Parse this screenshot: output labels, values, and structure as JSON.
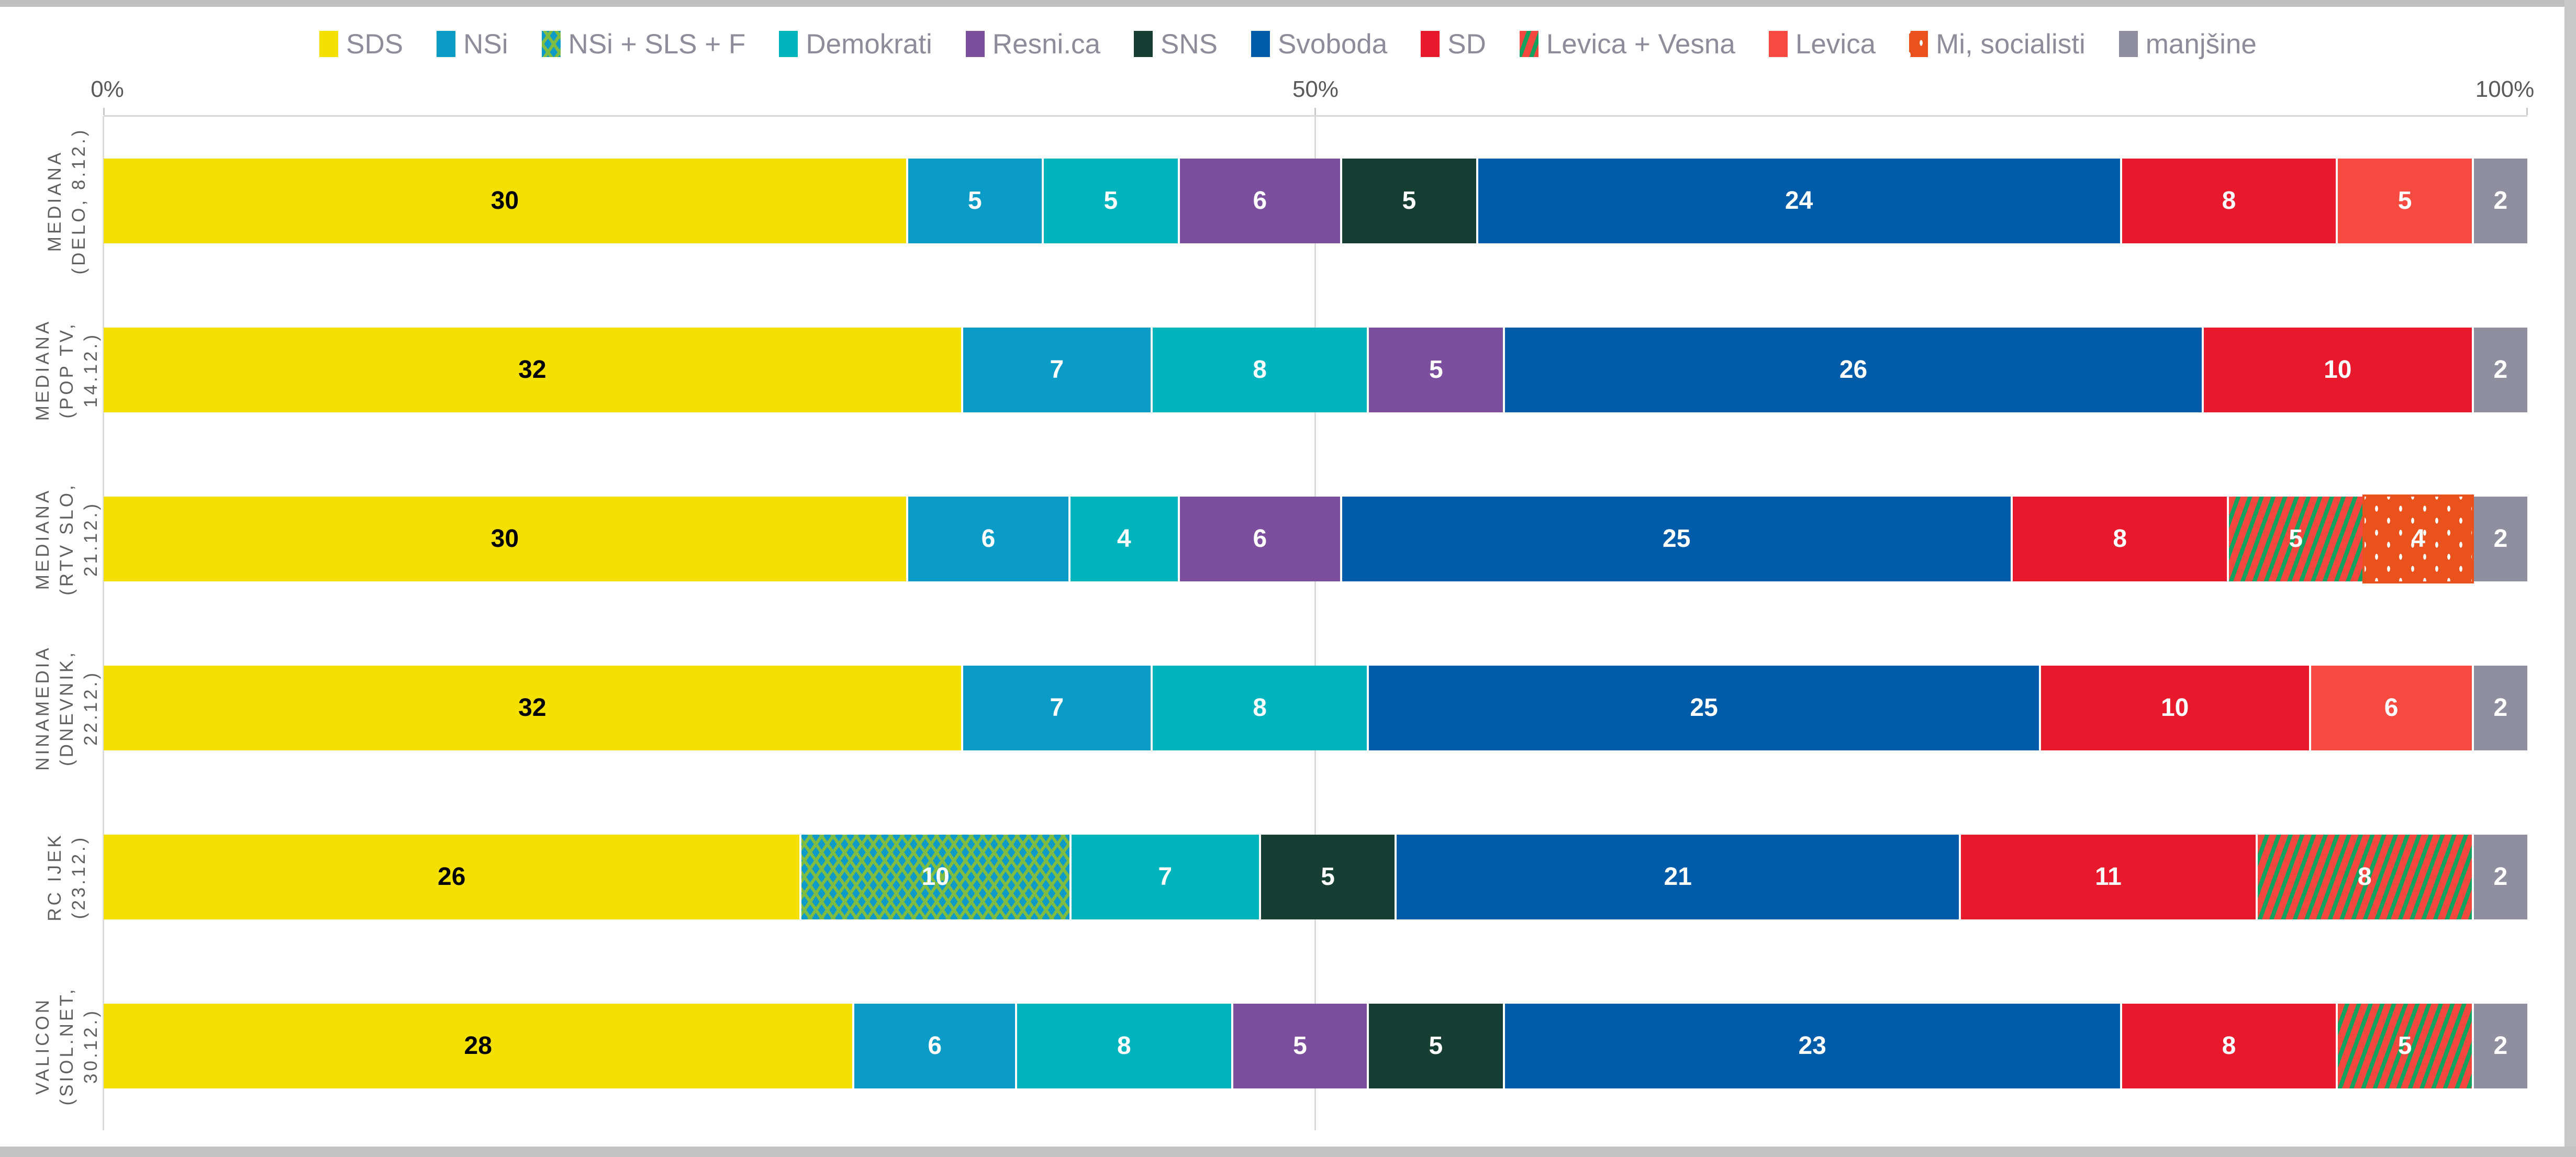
{
  "window": {
    "top_edge_color": "#bfbfbf",
    "right_edge_color": "#c9c9c9",
    "bottom_edge_color": "#c2c2c2"
  },
  "chart_data": {
    "type": "bar",
    "orientation": "horizontal",
    "stacked": true,
    "normalized_rows": true,
    "title": "",
    "x_axis": {
      "ticks": [
        "0%",
        "50%",
        "100%"
      ],
      "range_percent": [
        0,
        100
      ],
      "gridline_at_percent": 50,
      "grid_color": "#d9d9d9"
    },
    "legend_position": "top-center",
    "legend_text_color": "#8c8c9a",
    "axis_text_color": "#595959",
    "row_label_text_color": "#606060",
    "parties": [
      {
        "name": "SDS",
        "color": "#f5e003",
        "pattern": null,
        "pattern_color": null,
        "value_color": "#000000"
      },
      {
        "name": "NSi",
        "color": "#0a9bc7",
        "pattern": null,
        "pattern_color": null,
        "value_color": "#ffffff"
      },
      {
        "name": "NSi + SLS + F",
        "color": "#0e9bc8",
        "pattern": "zigzag",
        "pattern_color": "#7fbc42",
        "value_color": "#ffffff"
      },
      {
        "name": "Demokrati",
        "color": "#00b4be",
        "pattern": null,
        "pattern_color": null,
        "value_color": "#ffffff"
      },
      {
        "name": "Resni.ca",
        "color": "#7b4f9d",
        "pattern": null,
        "pattern_color": null,
        "value_color": "#ffffff"
      },
      {
        "name": "SNS",
        "color": "#173e33",
        "pattern": null,
        "pattern_color": null,
        "value_color": "#ffffff"
      },
      {
        "name": "Svoboda",
        "color": "#005ca9",
        "pattern": null,
        "pattern_color": null,
        "value_color": "#ffffff"
      },
      {
        "name": "SD",
        "color": "#e8192c",
        "pattern": null,
        "pattern_color": null,
        "value_color": "#ffffff"
      },
      {
        "name": "Levica + Vesna",
        "color": "#f4483f",
        "pattern": "diag-stripes",
        "pattern_color": "#12a15e",
        "value_color": "#ffffff"
      },
      {
        "name": "Levica",
        "color": "#f74a41",
        "pattern": null,
        "pattern_color": null,
        "value_color": "#ffffff"
      },
      {
        "name": "Mi, socialisti",
        "color": "#e9521d",
        "pattern": "dots",
        "pattern_color": "#ffffff",
        "value_color": "#ffffff"
      },
      {
        "name": "manjšine",
        "color": "#8f8fa0",
        "pattern": null,
        "pattern_color": null,
        "value_color": "#ffffff"
      }
    ],
    "rows": [
      {
        "pollster_label_lines": [
          "MEDIANA",
          "(DELO, 8.12.)"
        ],
        "segments": [
          {
            "party": "SDS",
            "value": 30
          },
          {
            "party": "NSi",
            "value": 5
          },
          {
            "party": "Demokrati",
            "value": 5
          },
          {
            "party": "Resni.ca",
            "value": 6
          },
          {
            "party": "SNS",
            "value": 5
          },
          {
            "party": "Svoboda",
            "value": 24
          },
          {
            "party": "SD",
            "value": 8
          },
          {
            "party": "Levica",
            "value": 5
          },
          {
            "party": "manjšine",
            "value": 2
          }
        ]
      },
      {
        "pollster_label_lines": [
          "MEDIANA",
          "(POP TV,",
          "14.12.)"
        ],
        "segments": [
          {
            "party": "SDS",
            "value": 32
          },
          {
            "party": "NSi",
            "value": 7
          },
          {
            "party": "Demokrati",
            "value": 8
          },
          {
            "party": "Resni.ca",
            "value": 5
          },
          {
            "party": "Svoboda",
            "value": 26
          },
          {
            "party": "SD",
            "value": 10
          },
          {
            "party": "manjšine",
            "value": 2
          }
        ]
      },
      {
        "pollster_label_lines": [
          "MEDIANA",
          "(RTV SLO,",
          "21.12.)"
        ],
        "segments": [
          {
            "party": "SDS",
            "value": 30
          },
          {
            "party": "NSi",
            "value": 6
          },
          {
            "party": "Demokrati",
            "value": 4
          },
          {
            "party": "Resni.ca",
            "value": 6
          },
          {
            "party": "Svoboda",
            "value": 25
          },
          {
            "party": "SD",
            "value": 8
          },
          {
            "party": "Levica + Vesna",
            "value": 5
          },
          {
            "party": "Mi, socialisti",
            "value": 4
          },
          {
            "party": "manjšine",
            "value": 2
          }
        ]
      },
      {
        "pollster_label_lines": [
          "NINAMEDIA",
          "(DNEVNIK,",
          "22.12.)"
        ],
        "segments": [
          {
            "party": "SDS",
            "value": 32
          },
          {
            "party": "NSi",
            "value": 7
          },
          {
            "party": "Demokrati",
            "value": 8
          },
          {
            "party": "Svoboda",
            "value": 25
          },
          {
            "party": "SD",
            "value": 10
          },
          {
            "party": "Levica",
            "value": 6
          },
          {
            "party": "manjšine",
            "value": 2
          }
        ]
      },
      {
        "pollster_label_lines": [
          "RC IJEK",
          "(23.12.)"
        ],
        "segments": [
          {
            "party": "SDS",
            "value": 26
          },
          {
            "party": "NSi + SLS + F",
            "value": 10
          },
          {
            "party": "Demokrati",
            "value": 7
          },
          {
            "party": "SNS",
            "value": 5
          },
          {
            "party": "Svoboda",
            "value": 21
          },
          {
            "party": "SD",
            "value": 11
          },
          {
            "party": "Levica + Vesna",
            "value": 8
          },
          {
            "party": "manjšine",
            "value": 2
          }
        ]
      },
      {
        "pollster_label_lines": [
          "VALICON",
          "(SIOL.NET,",
          "30.12.)"
        ],
        "segments": [
          {
            "party": "SDS",
            "value": 28
          },
          {
            "party": "NSi",
            "value": 6
          },
          {
            "party": "Demokrati",
            "value": 8
          },
          {
            "party": "Resni.ca",
            "value": 5
          },
          {
            "party": "SNS",
            "value": 5
          },
          {
            "party": "Svoboda",
            "value": 23
          },
          {
            "party": "SD",
            "value": 8
          },
          {
            "party": "Levica + Vesna",
            "value": 5
          },
          {
            "party": "manjšine",
            "value": 2
          }
        ]
      }
    ]
  }
}
